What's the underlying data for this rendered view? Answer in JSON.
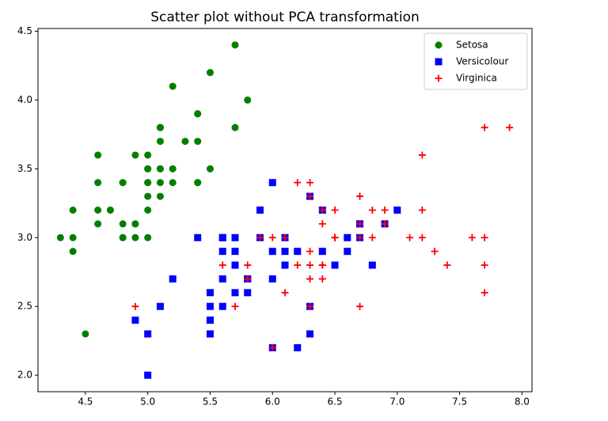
{
  "chart_data": {
    "type": "scatter",
    "title": "Scatter plot without PCA transformation",
    "xlim": [
      4.12,
      8.08
    ],
    "ylim": [
      1.88,
      4.52
    ],
    "xticks": [
      4.5,
      {
        "value": 5,
        "label": "5.0"
      },
      5.5,
      {
        "value": 6,
        "label": "6.0"
      },
      6.5,
      {
        "value": 7,
        "label": "7.0"
      },
      7.5,
      {
        "value": 8,
        "label": "8.0"
      }
    ],
    "yticks": [
      {
        "value": 2,
        "label": "2.0"
      },
      2.5,
      {
        "value": 3,
        "label": "3.0"
      },
      3.5,
      {
        "value": 4,
        "label": "4.0"
      },
      4.5
    ],
    "grid": false,
    "legend": "upper right",
    "series": [
      {
        "name": "Setosa",
        "color": "#008000",
        "marker": "circle",
        "x": [
          5.1,
          4.9,
          4.7,
          4.6,
          5.0,
          5.4,
          4.6,
          5.0,
          4.4,
          4.9,
          5.4,
          4.8,
          4.8,
          4.3,
          5.8,
          5.7,
          5.4,
          5.1,
          5.7,
          5.1,
          5.4,
          5.1,
          4.6,
          5.1,
          4.8,
          5.0,
          5.0,
          5.2,
          5.2,
          4.7,
          4.8,
          5.4,
          5.2,
          5.5,
          4.9,
          5.0,
          5.5,
          4.9,
          4.4,
          5.1,
          5.0,
          4.5,
          4.4,
          5.0,
          5.1,
          4.8,
          5.1,
          4.6,
          5.3,
          5.0
        ],
        "values": [
          3.5,
          3.0,
          3.2,
          3.1,
          3.6,
          3.9,
          3.4,
          3.4,
          2.9,
          3.1,
          3.7,
          3.4,
          3.0,
          3.0,
          4.0,
          4.4,
          3.9,
          3.5,
          3.8,
          3.8,
          3.4,
          3.7,
          3.6,
          3.3,
          3.4,
          3.0,
          3.4,
          3.5,
          3.4,
          3.2,
          3.1,
          3.4,
          4.1,
          4.2,
          3.1,
          3.2,
          3.5,
          3.6,
          3.0,
          3.4,
          3.5,
          2.3,
          3.2,
          3.5,
          3.8,
          3.0,
          3.8,
          3.2,
          3.7,
          3.3
        ]
      },
      {
        "name": "Versicolour",
        "color": "#0000ff",
        "marker": "square",
        "x": [
          7.0,
          6.4,
          6.9,
          5.5,
          6.5,
          5.7,
          6.3,
          4.9,
          6.6,
          5.2,
          5.0,
          5.9,
          6.0,
          6.1,
          5.6,
          6.7,
          5.6,
          5.8,
          6.2,
          5.6,
          5.9,
          6.1,
          6.3,
          6.1,
          6.4,
          6.6,
          6.8,
          6.7,
          6.0,
          5.7,
          5.5,
          5.5,
          5.8,
          6.0,
          5.4,
          6.0,
          6.7,
          6.3,
          5.6,
          5.5,
          5.5,
          6.1,
          5.8,
          5.0,
          5.6,
          5.7,
          5.7,
          6.2,
          5.1,
          5.7
        ],
        "values": [
          3.2,
          3.2,
          3.1,
          2.3,
          2.8,
          2.8,
          3.3,
          2.4,
          2.9,
          2.7,
          2.0,
          3.0,
          2.2,
          2.9,
          2.9,
          3.1,
          3.0,
          2.7,
          2.2,
          2.5,
          3.2,
          2.8,
          2.5,
          2.8,
          2.9,
          3.0,
          2.8,
          3.0,
          2.9,
          2.6,
          2.4,
          2.4,
          2.7,
          2.7,
          3.0,
          3.4,
          3.1,
          2.3,
          3.0,
          2.5,
          2.6,
          3.0,
          2.6,
          2.3,
          2.7,
          3.0,
          2.9,
          2.9,
          2.5,
          2.8
        ]
      },
      {
        "name": "Virginica",
        "color": "#ff0000",
        "marker": "plus",
        "x": [
          6.3,
          5.8,
          7.1,
          6.3,
          6.5,
          7.6,
          4.9,
          7.3,
          6.7,
          7.2,
          6.5,
          6.4,
          6.8,
          5.7,
          5.8,
          6.4,
          6.5,
          7.7,
          7.7,
          6.0,
          6.9,
          5.6,
          7.7,
          6.3,
          6.7,
          7.2,
          6.2,
          6.1,
          6.4,
          7.2,
          7.4,
          7.9,
          6.4,
          6.3,
          6.1,
          7.7,
          6.3,
          6.4,
          6.0,
          6.9,
          6.7,
          6.9,
          5.8,
          6.8,
          6.7,
          6.7,
          6.3,
          6.5,
          6.2,
          5.9
        ],
        "values": [
          3.3,
          2.7,
          3.0,
          2.9,
          3.0,
          3.0,
          2.5,
          2.9,
          2.5,
          3.6,
          3.2,
          2.7,
          3.0,
          2.5,
          2.8,
          3.2,
          3.0,
          3.8,
          2.6,
          2.2,
          3.2,
          2.8,
          2.8,
          2.7,
          3.3,
          3.2,
          2.8,
          3.0,
          2.8,
          3.0,
          2.8,
          3.8,
          2.8,
          2.8,
          2.6,
          3.0,
          3.4,
          3.1,
          3.0,
          3.1,
          3.1,
          3.1,
          2.7,
          3.2,
          3.3,
          3.0,
          2.5,
          3.0,
          3.4,
          3.0
        ]
      }
    ]
  }
}
